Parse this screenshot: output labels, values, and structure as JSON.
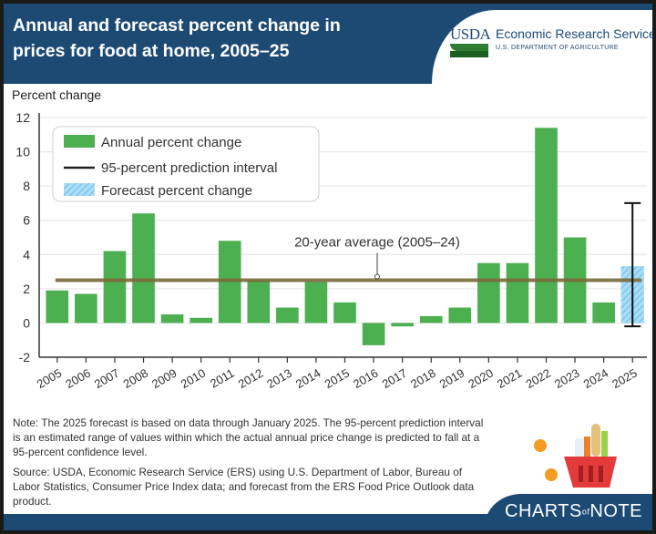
{
  "header": {
    "title": "Annual and forecast percent change in prices for food at home, 2005–25",
    "agency_mark": "USDA",
    "agency_name": "Economic Research Service",
    "agency_dept": "U.S. DEPARTMENT OF AGRICULTURE"
  },
  "chart_data": {
    "type": "bar",
    "title": "Annual and forecast percent change in prices for food at home, 2005–25",
    "xlabel": "",
    "ylabel": "Percent change",
    "ylim": [
      -2,
      12
    ],
    "yticks": [
      "-2",
      "0",
      "2",
      "4",
      "6",
      "8",
      "10",
      "12"
    ],
    "ytick_values": [
      -2,
      0,
      2,
      4,
      6,
      8,
      10,
      12
    ],
    "grid": true,
    "categories": [
      "2005",
      "2006",
      "2007",
      "2008",
      "2009",
      "2010",
      "2011",
      "2012",
      "2013",
      "2014",
      "2015",
      "2016",
      "2017",
      "2018",
      "2019",
      "2020",
      "2021",
      "2022",
      "2023",
      "2024",
      "2025"
    ],
    "series": [
      {
        "name": "Annual percent change",
        "color": "#4caf50",
        "values": [
          1.9,
          1.7,
          4.2,
          6.4,
          0.5,
          0.3,
          4.8,
          2.5,
          0.9,
          2.4,
          1.2,
          -1.3,
          -0.2,
          0.4,
          0.9,
          3.5,
          3.5,
          11.4,
          5.0,
          1.2,
          null
        ]
      },
      {
        "name": "Forecast percent change",
        "color": "#8fd3f4",
        "values": [
          null,
          null,
          null,
          null,
          null,
          null,
          null,
          null,
          null,
          null,
          null,
          null,
          null,
          null,
          null,
          null,
          null,
          null,
          null,
          null,
          3.3
        ]
      }
    ],
    "prediction_interval": {
      "name": "95-percent prediction interval",
      "year": "2025",
      "low": -0.2,
      "high": 7.0
    },
    "average_line": {
      "label": "20-year average (2005–24)",
      "value": 2.5,
      "color": "#7a6a3a"
    },
    "legend": {
      "position": "top-left",
      "items": [
        "Annual percent change",
        "95-percent prediction interval",
        "Forecast percent change"
      ]
    }
  },
  "notes": {
    "note": "Note: The 2025 forecast is based on data through January 2025. The 95-percent prediction interval is an estimated range of values within which the actual annual price change is predicted to fall at a 95-percent confidence level.",
    "source": "Source: USDA, Economic Research Service (ERS) using U.S. Department of Labor, Bureau of Labor Statistics, Consumer Price Index data; and forecast from the ERS Food Price Outlook data product."
  },
  "branding": {
    "charts_of_note_a": "CHARTS",
    "charts_of_note_of": "of",
    "charts_of_note_b": "NOTE"
  },
  "colors": {
    "header_bg": "#1d4a73",
    "bar": "#4caf50",
    "forecast": "#8fd3f4",
    "average": "#7a6a3a"
  }
}
